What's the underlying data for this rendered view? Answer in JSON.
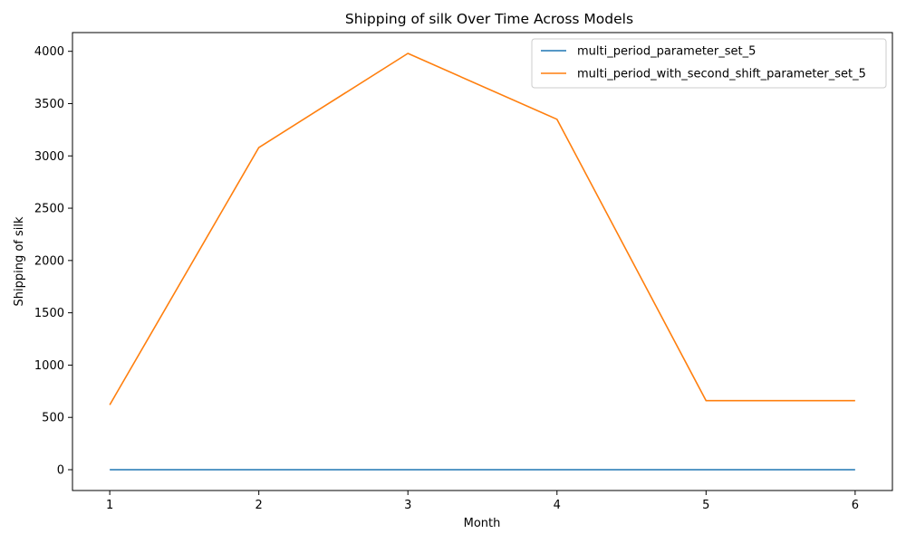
{
  "chart_data": {
    "type": "line",
    "title": "Shipping of silk Over Time Across Models",
    "xlabel": "Month",
    "ylabel": "Shipping of silk",
    "x": [
      1,
      2,
      3,
      4,
      5,
      6
    ],
    "xlim": [
      0.75,
      6.25
    ],
    "ylim": [
      -199,
      4179
    ],
    "xticks": [
      1,
      2,
      3,
      4,
      5,
      6
    ],
    "yticks": [
      0,
      500,
      1000,
      1500,
      2000,
      2500,
      3000,
      3500,
      4000
    ],
    "grid": false,
    "legend_position": "upper-right",
    "series": [
      {
        "name": "multi_period_parameter_set_5",
        "color": "#1f77b4",
        "values": [
          0,
          0,
          0,
          0,
          0,
          0
        ]
      },
      {
        "name": "multi_period_with_second_shift_parameter_set_5",
        "color": "#ff7f0e",
        "values": [
          620,
          3080,
          3980,
          3350,
          660,
          660
        ]
      }
    ]
  }
}
